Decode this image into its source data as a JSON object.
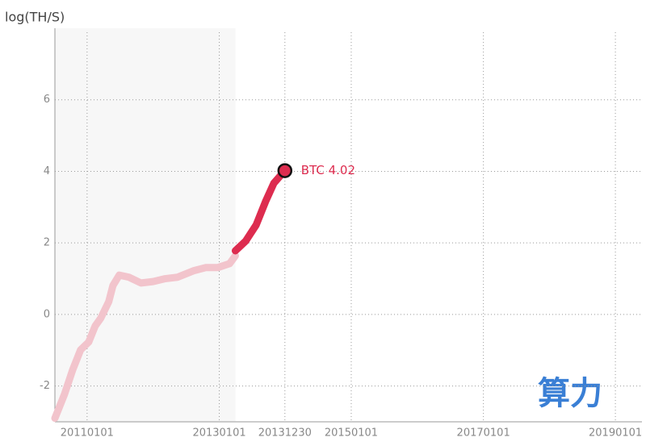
{
  "chart_data": {
    "type": "line",
    "y_label": "log(TH/S)",
    "watermark": "算力",
    "x": [
      "2010-07-07",
      "2010-08-29",
      "2010-10-13",
      "2010-11-26",
      "2011-01-10",
      "2011-02-15",
      "2011-03-18",
      "2011-05-01",
      "2011-05-24",
      "2011-06-28",
      "2011-08-21",
      "2011-10-26",
      "2012-01-01",
      "2012-03-08",
      "2012-05-14",
      "2012-08-11",
      "2012-10-17",
      "2012-12-23",
      "2013-02-27",
      "2013-03-31",
      "2013-05-27",
      "2013-07-24",
      "2013-09-16",
      "2013-10-30",
      "2013-12-30"
    ],
    "series": [
      {
        "color": "#f2c4cc",
        "values": [
          -2.9,
          -2.23,
          -1.55,
          -0.99,
          -0.77,
          -0.32,
          -0.1,
          0.36,
          0.81,
          1.1,
          1.04,
          0.88,
          0.92,
          1.0,
          1.04,
          1.22,
          1.31,
          1.31,
          1.42,
          1.64,
          null,
          null,
          null,
          null,
          null
        ]
      },
      {
        "color": "#dd2c4f",
        "values": [
          null,
          null,
          null,
          null,
          null,
          null,
          null,
          null,
          null,
          null,
          null,
          null,
          null,
          null,
          null,
          null,
          null,
          null,
          null,
          1.78,
          2.05,
          2.5,
          3.18,
          3.67,
          4.02
        ]
      }
    ],
    "highlight": {
      "x": "2013-12-30",
      "value": 4.02,
      "label": "BTC 4.02",
      "color": "#dd2c4f"
    },
    "shaded_region": [
      "2010-07-07",
      "2013-04-01"
    ],
    "xlim": [
      "2010-07-07",
      "2019-05-28"
    ],
    "xticks": [
      {
        "value": "2011-01-01",
        "label": "20110101"
      },
      {
        "value": "2013-01-01",
        "label": "20130101"
      },
      {
        "value": "2013-12-30",
        "label": "20131230"
      },
      {
        "value": "2015-01-01",
        "label": "20150101"
      },
      {
        "value": "2017-01-01",
        "label": "20170101"
      },
      {
        "value": "2019-01-01",
        "label": "20190101"
      }
    ],
    "ylim": [
      -3,
      8
    ],
    "yticks": [
      -2,
      0,
      2,
      4,
      6
    ],
    "grid": true
  }
}
